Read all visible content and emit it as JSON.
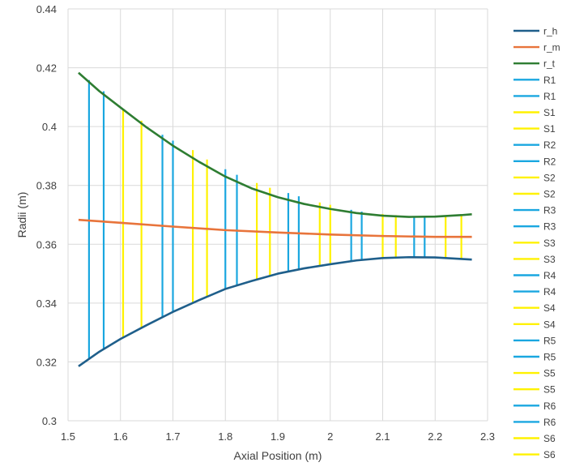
{
  "chart_data": {
    "type": "line",
    "title": "",
    "xlabel": "Axial Position (m)",
    "ylabel": "Radii (m)",
    "xlim": [
      1.5,
      2.3
    ],
    "ylim": [
      0.3,
      0.44
    ],
    "x_ticks": [
      "1.5",
      "1.6",
      "1.7",
      "1.8",
      "1.9",
      "2",
      "2.1",
      "2.2",
      "2.3"
    ],
    "y_ticks": [
      "0.3",
      "0.32",
      "0.34",
      "0.36",
      "0.38",
      "0.4",
      "0.42",
      "0.44"
    ],
    "grid": "horizontal and vertical major gridlines",
    "legend_position": "right",
    "series": [
      {
        "name": "r_h",
        "color": "#1F5F8B",
        "x": [
          1.52,
          1.56,
          1.6,
          1.65,
          1.7,
          1.75,
          1.8,
          1.85,
          1.9,
          1.95,
          2.0,
          2.05,
          2.1,
          2.15,
          2.2,
          2.25,
          2.27
        ],
        "y": [
          0.3185,
          0.3235,
          0.3278,
          0.3325,
          0.337,
          0.341,
          0.3448,
          0.3475,
          0.35,
          0.3518,
          0.3532,
          0.3545,
          0.3553,
          0.3556,
          0.3555,
          0.355,
          0.3548
        ]
      },
      {
        "name": "r_m",
        "color": "#E8743B",
        "x": [
          1.52,
          1.6,
          1.7,
          1.8,
          1.9,
          2.0,
          2.1,
          2.2,
          2.27
        ],
        "y": [
          0.3683,
          0.3673,
          0.366,
          0.3648,
          0.364,
          0.3633,
          0.3628,
          0.3625,
          0.3625
        ]
      },
      {
        "name": "r_t",
        "color": "#2E7D32",
        "x": [
          1.52,
          1.56,
          1.6,
          1.65,
          1.7,
          1.75,
          1.8,
          1.85,
          1.9,
          1.95,
          2.0,
          2.05,
          2.1,
          2.15,
          2.2,
          2.25,
          2.27
        ],
        "y": [
          0.4183,
          0.412,
          0.4065,
          0.3997,
          0.3935,
          0.388,
          0.383,
          0.379,
          0.376,
          0.3737,
          0.372,
          0.3706,
          0.3697,
          0.3693,
          0.3694,
          0.3699,
          0.3702
        ]
      },
      {
        "name": "R1",
        "color": "#1AA7E0",
        "x": [
          1.54,
          1.54
        ],
        "y": [
          0.3208,
          0.4158
        ]
      },
      {
        "name": "R1",
        "color": "#1AA7E0",
        "x": [
          1.568,
          1.568
        ],
        "y": [
          0.3241,
          0.412
        ]
      },
      {
        "name": "S1",
        "color": "#FFF200",
        "x": [
          1.605,
          1.605
        ],
        "y": [
          0.3284,
          0.406
        ]
      },
      {
        "name": "S1",
        "color": "#FFF200",
        "x": [
          1.64,
          1.64
        ],
        "y": [
          0.3316,
          0.402
        ]
      },
      {
        "name": "R2",
        "color": "#1AA7E0",
        "x": [
          1.68,
          1.68
        ],
        "y": [
          0.3353,
          0.3972
        ]
      },
      {
        "name": "R2",
        "color": "#1AA7E0",
        "x": [
          1.7,
          1.7
        ],
        "y": [
          0.337,
          0.3952
        ]
      },
      {
        "name": "S2",
        "color": "#FFF200",
        "x": [
          1.738,
          1.738
        ],
        "y": [
          0.34,
          0.392
        ]
      },
      {
        "name": "S2",
        "color": "#FFF200",
        "x": [
          1.765,
          1.765
        ],
        "y": [
          0.3423,
          0.3888
        ]
      },
      {
        "name": "R3",
        "color": "#1AA7E0",
        "x": [
          1.8,
          1.8
        ],
        "y": [
          0.3448,
          0.3855
        ]
      },
      {
        "name": "R3",
        "color": "#1AA7E0",
        "x": [
          1.822,
          1.822
        ],
        "y": [
          0.3461,
          0.3836
        ]
      },
      {
        "name": "S3",
        "color": "#FFF200",
        "x": [
          1.86,
          1.86
        ],
        "y": [
          0.348,
          0.3808
        ]
      },
      {
        "name": "S3",
        "color": "#FFF200",
        "x": [
          1.885,
          1.885
        ],
        "y": [
          0.3493,
          0.3792
        ]
      },
      {
        "name": "R4",
        "color": "#1AA7E0",
        "x": [
          1.92,
          1.92
        ],
        "y": [
          0.3509,
          0.3774
        ]
      },
      {
        "name": "R4",
        "color": "#1AA7E0",
        "x": [
          1.94,
          1.94
        ],
        "y": [
          0.3516,
          0.3763
        ]
      },
      {
        "name": "S4",
        "color": "#FFF200",
        "x": [
          1.98,
          1.98
        ],
        "y": [
          0.3527,
          0.3742
        ]
      },
      {
        "name": "S4",
        "color": "#FFF200",
        "x": [
          2.0,
          2.0
        ],
        "y": [
          0.3532,
          0.3734
        ]
      },
      {
        "name": "R5",
        "color": "#1AA7E0",
        "x": [
          2.04,
          2.04
        ],
        "y": [
          0.3543,
          0.3717
        ]
      },
      {
        "name": "R5",
        "color": "#1AA7E0",
        "x": [
          2.06,
          2.06
        ],
        "y": [
          0.3546,
          0.3711
        ]
      },
      {
        "name": "S5",
        "color": "#FFF200",
        "x": [
          2.1,
          2.1
        ],
        "y": [
          0.3553,
          0.3703
        ]
      },
      {
        "name": "S5",
        "color": "#FFF200",
        "x": [
          2.125,
          2.125
        ],
        "y": [
          0.3555,
          0.3699
        ]
      },
      {
        "name": "R6",
        "color": "#1AA7E0",
        "x": [
          2.16,
          2.16
        ],
        "y": [
          0.3556,
          0.3695
        ]
      },
      {
        "name": "R6",
        "color": "#1AA7E0",
        "x": [
          2.18,
          2.18
        ],
        "y": [
          0.3556,
          0.3694
        ]
      },
      {
        "name": "S6",
        "color": "#FFF200",
        "x": [
          2.22,
          2.22
        ],
        "y": [
          0.3554,
          0.3697
        ]
      },
      {
        "name": "S6",
        "color": "#FFF200",
        "x": [
          2.25,
          2.25
        ],
        "y": [
          0.355,
          0.37
        ]
      }
    ]
  }
}
